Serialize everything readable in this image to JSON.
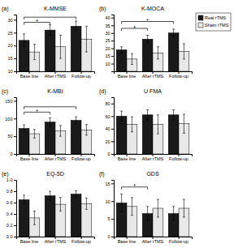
{
  "chart_data": [
    {
      "type": "bar",
      "panel_label": "(a)",
      "title": "K-MMSE",
      "categories": [
        "Base line",
        "After rTMS",
        "Follow-up"
      ],
      "series": [
        {
          "color": "#1a1a1a",
          "values": [
            22,
            26,
            27.5
          ],
          "errors": [
            2.5,
            2.0,
            2.0
          ]
        },
        {
          "color": "#e8e8e8",
          "values": [
            17.5,
            19.5,
            22.5
          ],
          "errors": [
            3.0,
            4.5,
            5.0
          ]
        }
      ],
      "ylim": [
        10,
        32
      ],
      "yticks": [
        10,
        15,
        20,
        25,
        30
      ],
      "brackets": [
        {
          "from": "Base line",
          "to": "After rTMS",
          "y": 29.0,
          "label": "*"
        },
        {
          "from": "Base line",
          "to": "Follow-up",
          "y": 31.0
        }
      ]
    },
    {
      "type": "bar",
      "panel_label": "(b)",
      "title": "K-MOCA",
      "categories": [
        "Base line",
        "After rTMS",
        "Follow-up"
      ],
      "series": [
        {
          "name": "Real rTMS",
          "color": "#1a1a1a",
          "values": [
            19,
            26,
            30
          ],
          "errors": [
            2.0,
            2.5,
            2.5
          ]
        },
        {
          "name": "Sham rTMS",
          "color": "#e8e8e8",
          "values": [
            13,
            17,
            18
          ],
          "errors": [
            3.5,
            4.0,
            5.0
          ]
        }
      ],
      "ylim": [
        5,
        42
      ],
      "yticks": [
        10,
        15,
        20,
        25,
        30,
        35,
        40
      ],
      "brackets": [
        {
          "from": "Base line",
          "to": "After rTMS",
          "y": 33.0,
          "label": "*"
        },
        {
          "from": "Base line",
          "to": "Follow-up",
          "y": 37.5,
          "label": "*"
        }
      ],
      "legend": "right"
    },
    {
      "type": "bar",
      "panel_label": "(c)",
      "title": "K-MBI",
      "categories": [
        "Base line",
        "After rTMS",
        "Follow-up"
      ],
      "series": [
        {
          "color": "#1a1a1a",
          "values": [
            72,
            90,
            95
          ],
          "errors": [
            10,
            12,
            10
          ]
        },
        {
          "color": "#e8e8e8",
          "values": [
            57,
            65,
            68
          ],
          "errors": [
            12,
            15,
            15
          ]
        }
      ],
      "ylim": [
        0,
        160
      ],
      "yticks": [
        0,
        50,
        100,
        150
      ],
      "brackets": [
        {
          "from": "Base line",
          "to": "After rTMS",
          "y": 118,
          "label": "*"
        },
        {
          "from": "Base line",
          "to": "Follow-up",
          "y": 133
        }
      ]
    },
    {
      "type": "bar",
      "panel_label": "(d)",
      "title": "U FMA",
      "categories": [
        "Base line",
        "After rTMS",
        "Follow-up"
      ],
      "series": [
        {
          "color": "#1a1a1a",
          "values": [
            60,
            62,
            62
          ],
          "errors": [
            8,
            8,
            8
          ]
        },
        {
          "color": "#e8e8e8",
          "values": [
            47,
            47,
            48
          ],
          "errors": [
            12,
            15,
            15
          ]
        }
      ],
      "ylim": [
        0,
        90
      ],
      "yticks": [
        0,
        20,
        40,
        60,
        80
      ]
    },
    {
      "type": "bar",
      "panel_label": "(e)",
      "title": "EQ-5D",
      "categories": [
        "Base line",
        "After rTMS",
        "Follow-up"
      ],
      "series": [
        {
          "color": "#1a1a1a",
          "values": [
            0.65,
            0.72,
            0.75
          ],
          "errors": [
            0.08,
            0.08,
            0.06
          ]
        },
        {
          "color": "#e8e8e8",
          "values": [
            0.33,
            0.57,
            0.58
          ],
          "errors": [
            0.12,
            0.12,
            0.1
          ]
        }
      ],
      "ylim": [
        0.0,
        1.0
      ],
      "yticks": [
        {
          "value": 0,
          "label": "0.0"
        },
        0.2,
        0.4,
        0.6,
        0.8,
        {
          "value": 1,
          "label": "1.0"
        }
      ]
    },
    {
      "type": "bar",
      "panel_label": "(f)",
      "title": "GDS",
      "categories": [
        "Base line",
        "After rTMS",
        "Follow-up"
      ],
      "series": [
        {
          "color": "#1a1a1a",
          "values": [
            9.5,
            6.5,
            6.5
          ],
          "errors": [
            2.5,
            2.0,
            2.0
          ]
        },
        {
          "color": "#e8e8e8",
          "values": [
            8.5,
            8.0,
            8.0
          ],
          "errors": [
            2.5,
            2.5,
            2.5
          ]
        }
      ],
      "ylim": [
        0,
        16
      ],
      "yticks": [
        0,
        5,
        10,
        15
      ],
      "brackets": [
        {
          "from": "Base line",
          "to": "After rTMS",
          "y": 14.0,
          "label": "*"
        }
      ]
    }
  ]
}
